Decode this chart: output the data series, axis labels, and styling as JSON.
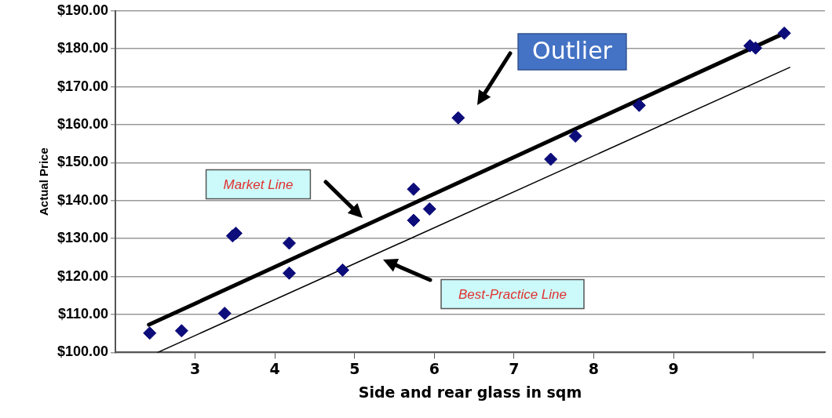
{
  "chart_data": {
    "type": "scatter",
    "xlabel": "Side and rear glass in sqm",
    "ylabel": "Actual Price",
    "xlim": [
      2,
      10.9
    ],
    "xticks": [
      3,
      4,
      5,
      6,
      7,
      8,
      9,
      {
        "value": 10,
        "label": null
      }
    ],
    "ylim": [
      100,
      190
    ],
    "yticks": [
      {
        "value": 100,
        "label": "$100.00"
      },
      {
        "value": 110,
        "label": "$110.00"
      },
      {
        "value": 120,
        "label": "$120.00"
      },
      {
        "value": 130,
        "label": "$130.00"
      },
      {
        "value": 140,
        "label": "$140.00"
      },
      {
        "value": 150,
        "label": "$150.00"
      },
      {
        "value": 160,
        "label": "$160.00"
      },
      {
        "value": 170,
        "label": "$170.00"
      },
      {
        "value": 180,
        "label": "$180.00"
      },
      {
        "value": 190,
        "label": "$190.00"
      }
    ],
    "grid": "y",
    "legend": false,
    "marker": "diamond",
    "series": [
      {
        "color": "#0c0c7a",
        "x": [
          2.43,
          2.83,
          3.37,
          3.47,
          3.51,
          4.18,
          4.18,
          4.85,
          5.74,
          5.74,
          5.94,
          6.3,
          7.46,
          7.77,
          8.57,
          9.96,
          10.03,
          10.39
        ],
        "values": [
          105.1,
          105.7,
          110.3,
          130.7,
          131.4,
          128.8,
          120.9,
          121.7,
          143.0,
          134.8,
          137.8,
          161.8,
          150.9,
          157.0,
          165.1,
          180.8,
          180.2,
          184.1
        ]
      },
      {
        "type": "line",
        "color": "#000000",
        "marker": "none",
        "x": [
          2.42,
          10.39
        ],
        "values": [
          107.3,
          184.1
        ]
      },
      {
        "type": "line",
        "color": "#000000",
        "marker": "none",
        "x": [
          2.53,
          10.46
        ],
        "values": [
          100,
          175.1
        ]
      }
    ],
    "annotations": [
      "Outlier",
      "Market Line",
      "Best-Practice Line"
    ]
  }
}
